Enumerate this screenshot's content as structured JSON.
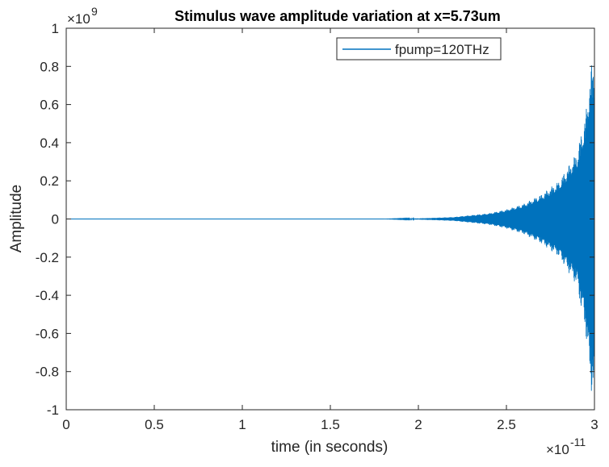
{
  "chart_data": {
    "type": "line",
    "title": "Stimulus wave amplitude variation at x=5.73um",
    "xlabel": "time (in seconds)",
    "ylabel": "Amplitude",
    "x_exponent_label": "×10",
    "x_exponent_power": "-11",
    "y_exponent_label": "×10",
    "y_exponent_power": "9",
    "xlim": [
      0,
      3
    ],
    "ylim": [
      -1,
      1
    ],
    "x_scale_factor": 1e-11,
    "y_scale_factor": 1000000000.0,
    "xticks": [
      0,
      0.5,
      1,
      1.5,
      2,
      2.5,
      3
    ],
    "xtick_labels": [
      "0",
      "0.5",
      "1",
      "1.5",
      "2",
      "2.5",
      "3"
    ],
    "yticks": [
      -1,
      -0.8,
      -0.6,
      -0.4,
      -0.2,
      0,
      0.2,
      0.4,
      0.6,
      0.8,
      1
    ],
    "ytick_labels": [
      "-1",
      "-0.8",
      "-0.6",
      "-0.4",
      "-0.2",
      "0",
      "0.2",
      "0.4",
      "0.6",
      "0.8",
      "1"
    ],
    "grid": false,
    "legend_position": "top-right",
    "series": [
      {
        "name": "fpump=120THz",
        "color": "#0072BD",
        "envelope": {
          "description_points_x": [
            0,
            1.8,
            2.0,
            2.2,
            2.4,
            2.5,
            2.6,
            2.7,
            2.8,
            2.9,
            2.95,
            2.98,
            3.0
          ],
          "positive_y": [
            0,
            0,
            0.003,
            0.01,
            0.03,
            0.05,
            0.08,
            0.13,
            0.2,
            0.35,
            0.55,
            0.8,
            0.85
          ],
          "negative_y": [
            0,
            0,
            -0.003,
            -0.01,
            -0.03,
            -0.05,
            -0.08,
            -0.13,
            -0.2,
            -0.35,
            -0.6,
            -0.9,
            -0.93
          ]
        }
      }
    ]
  }
}
